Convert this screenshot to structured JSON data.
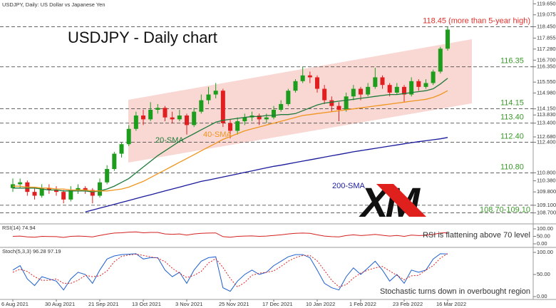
{
  "chart_data": {
    "type": "candlestick",
    "subtitle": "USDJPY, Daily:  US Dollar vs Japanese Yen",
    "title": "USDJPY - Daily chart",
    "logo": "XM",
    "categories": [
      "6 Aug 2021",
      null,
      null,
      null,
      null,
      null,
      "30 Aug 2021",
      null,
      null,
      null,
      null,
      null,
      "21 Sep 2021",
      null,
      null,
      null,
      null,
      null,
      "13 Oct 2021",
      null,
      null,
      null,
      null,
      null,
      "3 Nov 2021",
      null,
      null,
      null,
      null,
      null,
      "25 Nov 2021",
      null,
      null,
      null,
      null,
      null,
      "17 Dec 2021",
      null,
      null,
      null,
      null,
      null,
      "10 Jan 2022",
      null,
      null,
      null,
      null,
      null,
      "1 Feb 2022",
      null,
      null,
      null,
      null,
      null,
      "23 Feb 2022",
      null,
      null,
      null,
      null,
      null,
      "16 Mar 2022"
    ],
    "open": [
      110.0,
      110.2,
      110.3,
      109.8,
      109.6,
      110.0,
      109.9,
      109.8,
      109.4,
      109.9,
      110.0,
      109.9,
      109.6,
      110.3,
      111.0,
      111.8,
      112.3,
      113.1,
      113.8,
      113.6,
      114.1,
      114.2,
      113.7,
      113.6,
      113.8,
      113.3,
      114.0,
      114.6,
      114.9,
      115.1,
      113.4,
      113.0,
      113.5,
      113.7,
      113.8,
      113.6,
      113.7,
      114.1,
      114.4,
      115.1,
      115.6,
      115.9,
      115.8,
      115.2,
      114.6,
      114.3,
      114.1,
      114.8,
      115.2,
      114.9,
      115.3,
      115.8,
      115.4,
      115.0,
      115.3,
      114.9,
      115.6,
      115.3,
      115.5,
      116.1,
      117.3
    ],
    "high": [
      110.5,
      110.5,
      110.4,
      110.0,
      110.2,
      110.2,
      110.1,
      109.9,
      110.1,
      110.2,
      110.1,
      110.0,
      110.5,
      111.2,
      111.9,
      112.4,
      113.3,
      114.0,
      114.1,
      114.5,
      114.4,
      114.3,
      114.0,
      114.1,
      113.9,
      114.2,
      114.9,
      115.3,
      115.5,
      115.2,
      113.6,
      113.7,
      113.9,
      114.0,
      113.9,
      113.9,
      114.3,
      114.6,
      115.2,
      115.7,
      116.35,
      116.1,
      115.9,
      115.4,
      114.8,
      114.5,
      115.0,
      115.4,
      115.3,
      115.5,
      116.3,
      115.9,
      115.5,
      115.5,
      115.4,
      115.8,
      115.7,
      115.7,
      116.2,
      117.4,
      118.45
    ],
    "low": [
      109.8,
      110.0,
      109.6,
      109.4,
      109.5,
      109.7,
      109.6,
      109.2,
      109.3,
      109.7,
      109.7,
      109.2,
      109.5,
      110.2,
      110.9,
      111.6,
      112.2,
      113.0,
      113.3,
      113.5,
      113.9,
      113.5,
      113.4,
      113.5,
      112.8,
      113.2,
      113.9,
      114.4,
      114.7,
      113.2,
      112.6,
      112.8,
      113.3,
      113.5,
      113.3,
      113.4,
      113.6,
      114.0,
      114.3,
      115.0,
      115.5,
      115.5,
      115.0,
      114.4,
      114.0,
      113.5,
      114.0,
      114.6,
      114.6,
      114.8,
      115.2,
      115.2,
      114.8,
      114.9,
      114.5,
      114.8,
      115.1,
      115.2,
      115.4,
      116.0,
      117.2
    ],
    "close": [
      110.2,
      110.3,
      109.8,
      109.6,
      110.0,
      109.9,
      109.8,
      109.4,
      109.9,
      110.0,
      109.9,
      109.6,
      110.3,
      111.0,
      111.8,
      112.3,
      113.1,
      113.8,
      113.6,
      114.1,
      114.2,
      113.7,
      113.6,
      113.8,
      113.3,
      114.0,
      114.6,
      114.9,
      115.1,
      113.4,
      113.0,
      113.5,
      113.7,
      113.8,
      113.6,
      113.7,
      114.1,
      114.4,
      115.1,
      115.6,
      115.9,
      115.8,
      115.2,
      114.6,
      114.3,
      114.1,
      114.8,
      115.2,
      114.9,
      115.3,
      115.8,
      115.4,
      115.0,
      115.3,
      114.9,
      115.6,
      115.3,
      115.5,
      116.1,
      117.3,
      118.3
    ],
    "up_color": "#1c9e1c",
    "down_color": "#e02020",
    "ylim": [
      108.2,
      119.85
    ],
    "yticks": [
      {
        "value": 119.65,
        "label": "119.650"
      },
      {
        "value": 119.075,
        "label": "119.075"
      },
      {
        "value": 118.45,
        "label": "118.450"
      },
      {
        "value": 117.855,
        "label": "117.855"
      },
      {
        "value": 117.28,
        "label": "117.280"
      },
      {
        "value": 116.7,
        "label": "116.700"
      },
      {
        "value": 116.35,
        "label": "116.350"
      },
      {
        "value": 115.55,
        "label": "115.550"
      },
      {
        "value": 114.98,
        "label": "114.980"
      },
      {
        "value": 114.15,
        "label": "114.150"
      },
      {
        "value": 113.83,
        "label": "113.830"
      },
      {
        "value": 113.4,
        "label": "113.400"
      },
      {
        "value": 112.68,
        "label": "112.680"
      },
      {
        "value": 112.4,
        "label": "112.400"
      },
      {
        "value": 110.8,
        "label": "110.800"
      },
      {
        "value": 110.38,
        "label": "110.380"
      },
      {
        "value": 109.8,
        "label": "109.800"
      },
      {
        "value": 109.1,
        "label": "109.100"
      },
      {
        "value": 108.7,
        "label": "108.700"
      }
    ],
    "series": [
      {
        "name": "20-SMA",
        "color": "#1f7a3a",
        "values": [
          110.0,
          110.0,
          110.0,
          110.0,
          109.95,
          109.9,
          109.9,
          109.85,
          109.85,
          109.85,
          109.85,
          109.8,
          109.85,
          109.95,
          110.1,
          110.3,
          110.5,
          110.8,
          111.1,
          111.4,
          111.7,
          111.95,
          112.2,
          112.45,
          112.65,
          112.85,
          113.05,
          113.25,
          113.45,
          113.55,
          113.6,
          113.65,
          113.7,
          113.75,
          113.75,
          113.8,
          113.8,
          113.85,
          113.85,
          113.9,
          114.05,
          114.2,
          114.35,
          114.45,
          114.5,
          114.55,
          114.6,
          114.65,
          114.7,
          114.75,
          114.8,
          114.85,
          114.9,
          114.9,
          114.95,
          115.0,
          115.05,
          115.1,
          115.2,
          115.45,
          115.75
        ]
      },
      {
        "name": "40-SMA",
        "color": "#f0951e",
        "values": [
          110.1,
          110.1,
          110.05,
          110.05,
          110.0,
          110.0,
          109.95,
          109.95,
          109.9,
          109.9,
          109.9,
          109.85,
          109.85,
          109.85,
          109.9,
          109.95,
          110.05,
          110.2,
          110.35,
          110.55,
          110.75,
          110.95,
          111.15,
          111.35,
          111.55,
          111.75,
          111.95,
          112.15,
          112.35,
          112.55,
          112.7,
          112.85,
          113.0,
          113.1,
          113.2,
          113.3,
          113.4,
          113.5,
          113.6,
          113.7,
          113.8,
          113.85,
          113.9,
          113.95,
          114.0,
          114.05,
          114.1,
          114.15,
          114.2,
          114.25,
          114.3,
          114.35,
          114.4,
          114.45,
          114.5,
          114.55,
          114.6,
          114.65,
          114.75,
          114.9,
          115.1
        ]
      },
      {
        "name": "200-SMA",
        "color": "#1a1a9c",
        "values": [
          null,
          null,
          null,
          null,
          null,
          null,
          null,
          null,
          null,
          null,
          108.75,
          108.85,
          108.95,
          109.05,
          109.15,
          109.25,
          109.35,
          109.45,
          109.55,
          109.65,
          109.75,
          109.85,
          109.95,
          110.05,
          110.15,
          110.25,
          110.35,
          110.42,
          110.5,
          110.58,
          110.66,
          110.74,
          110.82,
          110.9,
          110.98,
          111.06,
          111.14,
          111.2,
          111.27,
          111.34,
          111.41,
          111.48,
          111.55,
          111.62,
          111.69,
          111.76,
          111.83,
          111.9,
          111.96,
          112.02,
          112.08,
          112.14,
          112.2,
          112.26,
          112.32,
          112.38,
          112.43,
          112.48,
          112.53,
          112.58,
          112.65
        ]
      }
    ],
    "levels": [
      {
        "values": [
          118.45
        ],
        "label": "118.45 (more than 5-year high)",
        "color": "#e0302a"
      },
      {
        "values": [
          116.35
        ],
        "label": "116.35",
        "color": "#3a9a2a"
      },
      {
        "values": [
          114.15
        ],
        "label": "114.15",
        "color": "#3a9a2a"
      },
      {
        "values": [
          113.4
        ],
        "label": "113.40",
        "color": "#3a9a2a"
      },
      {
        "values": [
          112.4
        ],
        "label": "112.40",
        "color": "#3a9a2a"
      },
      {
        "values": [
          110.8
        ],
        "label": "110.80",
        "color": "#3a9a2a"
      },
      {
        "values": [
          108.7,
          109.1
        ],
        "label": "108.70-109.10",
        "color": "#3a9a2a"
      }
    ],
    "indicators": [
      {
        "type": "line",
        "title": "RSI(14) 74.94",
        "note": "RSI is flattening above 70 level",
        "ylim": [
          0,
          100
        ],
        "yticks": [
          {
            "value": 100,
            "label": "100.00"
          },
          {
            "value": 50,
            "label": "50.00"
          },
          {
            "value": 0,
            "label": "0.00"
          }
        ],
        "series": [
          {
            "color": "#d42020",
            "values": [
              50,
              52,
              46,
              44,
              50,
              49,
              48,
              43,
              50,
              52,
              50,
              46,
              56,
              65,
              72,
              74,
              78,
              80,
              74,
              76,
              76,
              66,
              64,
              66,
              58,
              66,
              70,
              72,
              73,
              48,
              44,
              50,
              52,
              53,
              50,
              52,
              56,
              60,
              66,
              70,
              72,
              70,
              60,
              52,
              48,
              46,
              55,
              60,
              55,
              58,
              63,
              57,
              52,
              56,
              50,
              58,
              55,
              57,
              63,
              72,
              74.94
            ]
          }
        ]
      },
      {
        "type": "line",
        "title": "Stoch(5,3,3) 96.28 97.19",
        "note": "Stochastic turns down in overbought region",
        "ylim": [
          0,
          100
        ],
        "yticks": [
          {
            "value": 100,
            "label": "100.00"
          },
          {
            "value": 50,
            "label": "50.00"
          },
          {
            "value": 0,
            "label": "0.00"
          }
        ],
        "series": [
          {
            "color": "#1d5fd0",
            "values": [
              60,
              70,
              40,
              25,
              45,
              40,
              35,
              15,
              40,
              55,
              50,
              30,
              60,
              85,
              92,
              95,
              96,
              97,
              85,
              88,
              88,
              60,
              45,
              55,
              30,
              60,
              80,
              88,
              90,
              20,
              12,
              35,
              50,
              60,
              50,
              55,
              70,
              80,
              90,
              95,
              95,
              88,
              60,
              30,
              20,
              15,
              45,
              65,
              50,
              65,
              80,
              60,
              35,
              50,
              30,
              60,
              55,
              60,
              85,
              97,
              96.28
            ]
          },
          {
            "color": "#e02020",
            "style": "dashed",
            "values": [
              55,
              62,
              57,
              45,
              37,
              37,
              40,
              30,
              30,
              37,
              48,
              45,
              47,
              58,
              79,
              91,
              94,
              96,
              93,
              90,
              87,
              79,
              64,
              53,
              43,
              48,
              57,
              76,
              86,
              66,
              41,
              22,
              32,
              48,
              53,
              55,
              58,
              68,
              80,
              88,
              93,
              93,
              81,
              59,
              37,
              22,
              27,
              42,
              53,
              60,
              65,
              68,
              58,
              48,
              38,
              47,
              48,
              60,
              70,
              87,
              97.19
            ]
          }
        ]
      }
    ]
  }
}
